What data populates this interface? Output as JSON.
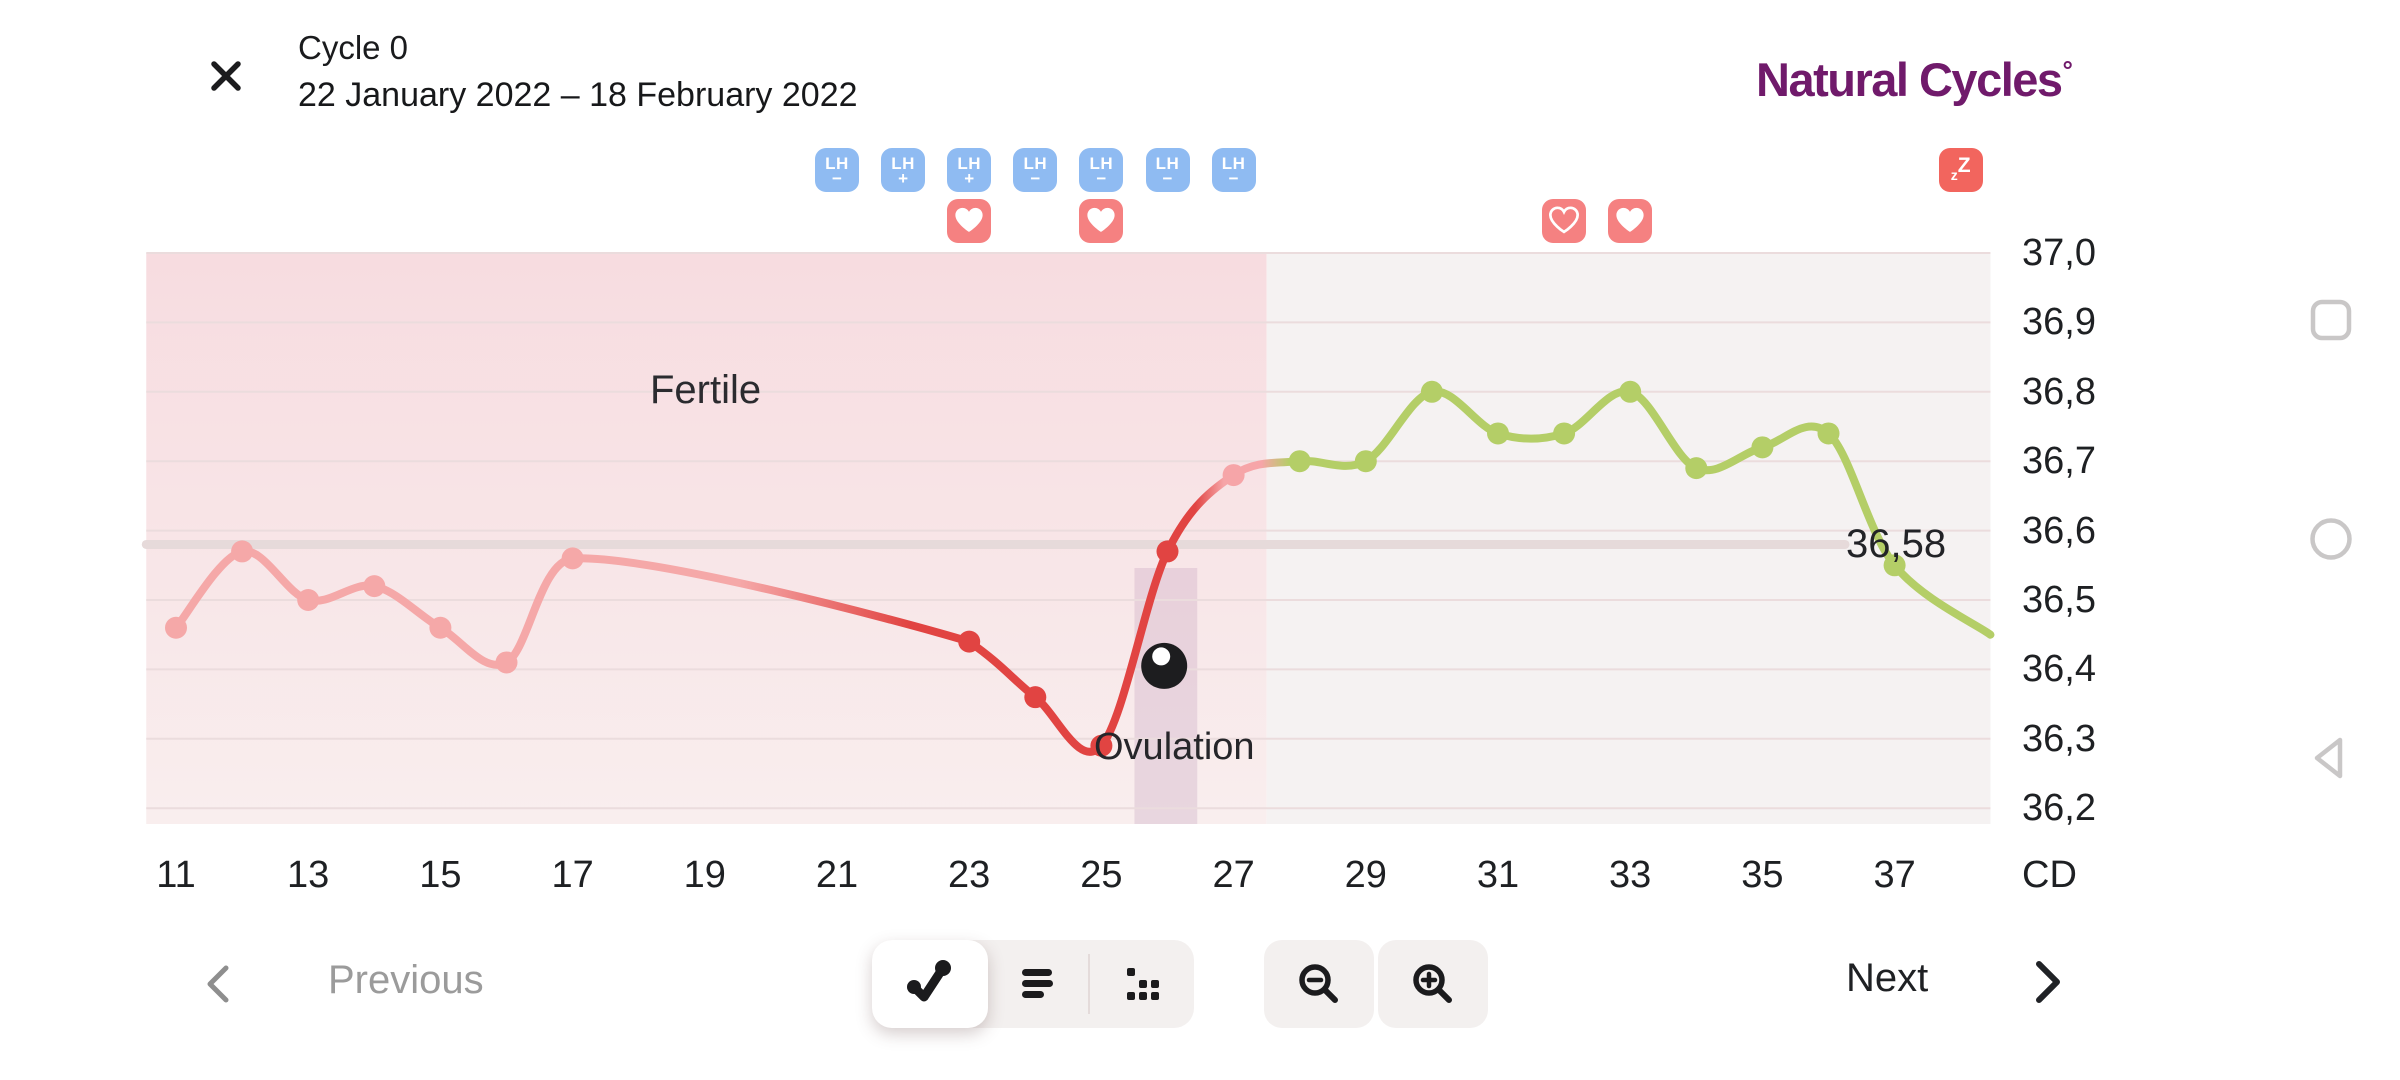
{
  "header": {
    "title": "Cycle 0",
    "date_range": "22 January 2022 – 18 February 2022"
  },
  "brand": {
    "name": "Natural Cycles",
    "degree_mark": "°",
    "color": "#701A6B"
  },
  "badges": {
    "lh_label": "LH",
    "lh_tests": [
      {
        "day": 21,
        "result": "−"
      },
      {
        "day": 22,
        "result": "+"
      },
      {
        "day": 23,
        "result": "+"
      },
      {
        "day": 24,
        "result": "−"
      },
      {
        "day": 25,
        "result": "−"
      },
      {
        "day": 26,
        "result": "−"
      },
      {
        "day": 27,
        "result": "−"
      }
    ],
    "intercourse": [
      {
        "day": 23,
        "style": "filled"
      },
      {
        "day": 25,
        "style": "filled"
      },
      {
        "day": 32,
        "style": "outline"
      },
      {
        "day": 33,
        "style": "filled"
      }
    ],
    "sleep": {
      "day": 38,
      "label": "zZ"
    },
    "colors": {
      "lh_bg": "#8FBBF2",
      "heart_bg": "#F58181",
      "sleep_bg": "#F2655E"
    }
  },
  "chart_data": {
    "type": "line",
    "title": "",
    "xlabel": "CD",
    "ylabel": "",
    "xlim": [
      10.55,
      38.45
    ],
    "ylim": [
      36.18,
      37.0
    ],
    "grid": true,
    "x_ticks": [
      {
        "label": "11",
        "day": 11
      },
      {
        "label": "13",
        "day": 13
      },
      {
        "label": "15",
        "day": 15
      },
      {
        "label": "17",
        "day": 17
      },
      {
        "label": "19",
        "day": 19
      },
      {
        "label": "21",
        "day": 21
      },
      {
        "label": "23",
        "day": 23
      },
      {
        "label": "25",
        "day": 25
      },
      {
        "label": "27",
        "day": 27
      },
      {
        "label": "29",
        "day": 29
      },
      {
        "label": "31",
        "day": 31
      },
      {
        "label": "33",
        "day": 33
      },
      {
        "label": "35",
        "day": 35
      },
      {
        "label": "37",
        "day": 37
      }
    ],
    "y_ticks": [
      {
        "label": "37,0",
        "value": 37.0
      },
      {
        "label": "36,9",
        "value": 36.9
      },
      {
        "label": "36,8",
        "value": 36.8
      },
      {
        "label": "36,7",
        "value": 36.7
      },
      {
        "label": "36,6",
        "value": 36.6
      },
      {
        "label": "36,5",
        "value": 36.5
      },
      {
        "label": "36,4",
        "value": 36.4
      },
      {
        "label": "36,3",
        "value": 36.3
      },
      {
        "label": "36,2",
        "value": 36.2
      }
    ],
    "fertile_region": {
      "label": "Fertile",
      "start_day": 10.55,
      "end_day": 27.5
    },
    "ovulation": {
      "label": "Ovulation",
      "band_days": [
        25.5,
        26.45
      ],
      "marker_day": 25.95,
      "marker_temp": 36.405
    },
    "cover_line": {
      "label": "36,58",
      "value": 36.58,
      "start_day": 10.55,
      "end_day": 36.25
    },
    "colors": {
      "pink": "#F5A8A8",
      "red": "#E14442",
      "excluded": "#F6A5A8",
      "green": "#B4CE67",
      "cover": "#E6DADA",
      "grid": "#EBDCDD",
      "band": "rgba(186,148,183,0.26)",
      "fertile_top": "#F7DCE0",
      "fertile_bottom": "#F9EEEE",
      "rest_bg": "#F5F2F2",
      "marker": "#1D1D1F"
    },
    "points": [
      {
        "day": 11,
        "temp": 36.46,
        "phase": "pink"
      },
      {
        "day": 12,
        "temp": 36.57,
        "phase": "pink"
      },
      {
        "day": 13,
        "temp": 36.5,
        "phase": "pink"
      },
      {
        "day": 14,
        "temp": 36.52,
        "phase": "pink"
      },
      {
        "day": 15,
        "temp": 36.46,
        "phase": "pink"
      },
      {
        "day": 16,
        "temp": 36.41,
        "phase": "pink"
      },
      {
        "day": 17,
        "temp": 36.56,
        "phase": "pink"
      },
      {
        "day": 23,
        "temp": 36.44,
        "phase": "red"
      },
      {
        "day": 24,
        "temp": 36.36,
        "phase": "red"
      },
      {
        "day": 25,
        "temp": 36.29,
        "phase": "red"
      },
      {
        "day": 26,
        "temp": 36.57,
        "phase": "red"
      },
      {
        "day": 27,
        "temp": 36.68,
        "phase": "excluded"
      },
      {
        "day": 28,
        "temp": 36.7,
        "phase": "green"
      },
      {
        "day": 29,
        "temp": 36.7,
        "phase": "green"
      },
      {
        "day": 30,
        "temp": 36.8,
        "phase": "green"
      },
      {
        "day": 31,
        "temp": 36.74,
        "phase": "green"
      },
      {
        "day": 32,
        "temp": 36.74,
        "phase": "green"
      },
      {
        "day": 33,
        "temp": 36.8,
        "phase": "green"
      },
      {
        "day": 34,
        "temp": 36.69,
        "phase": "green"
      },
      {
        "day": 35,
        "temp": 36.72,
        "phase": "green"
      },
      {
        "day": 36,
        "temp": 36.74,
        "phase": "green"
      },
      {
        "day": 37,
        "temp": 36.55,
        "phase": "green"
      },
      {
        "day": 38.45,
        "temp": 36.45,
        "phase": "green",
        "dot": false
      }
    ]
  },
  "footer": {
    "previous_label": "Previous",
    "next_label": "Next"
  }
}
